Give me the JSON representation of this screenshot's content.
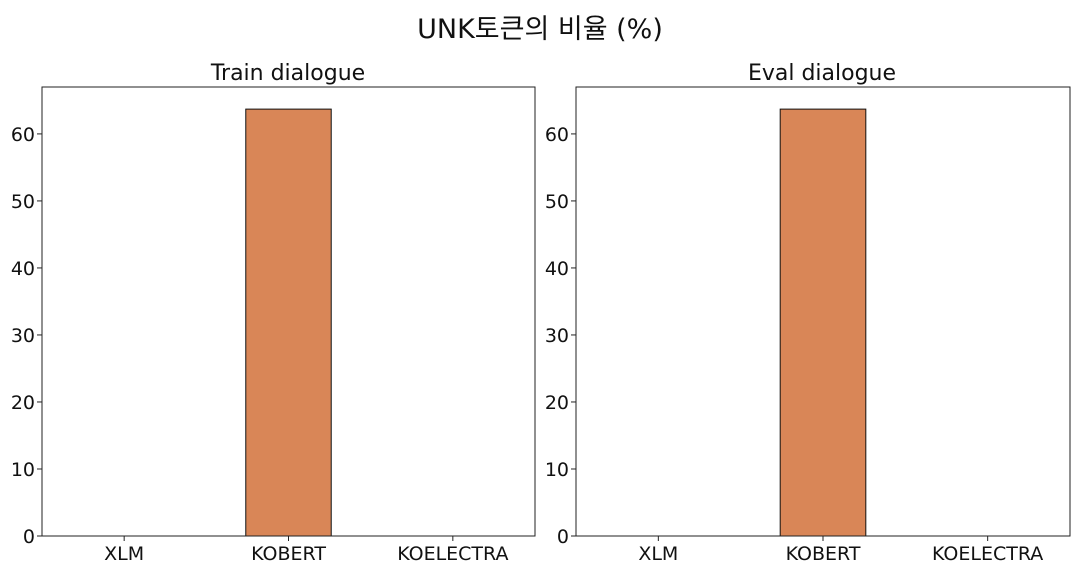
{
  "figure_title": "UNK토큰의 비율 (%)",
  "chart_data": [
    {
      "type": "bar",
      "title": "Train dialogue",
      "categories": [
        "XLM",
        "KOBERT",
        "KOELECTRA"
      ],
      "values": [
        0,
        63.7,
        0
      ],
      "ylim": [
        0,
        67
      ],
      "yticks": [
        0,
        10,
        20,
        30,
        40,
        50,
        60
      ],
      "xlabel": "",
      "ylabel": "",
      "bar_color": "#d98657",
      "grid": false
    },
    {
      "type": "bar",
      "title": "Eval dialogue",
      "categories": [
        "XLM",
        "KOBERT",
        "KOELECTRA"
      ],
      "values": [
        0,
        63.7,
        0
      ],
      "ylim": [
        0,
        67
      ],
      "yticks": [
        0,
        10,
        20,
        30,
        40,
        50,
        60
      ],
      "xlabel": "",
      "ylabel": "",
      "bar_color": "#d98657",
      "grid": false
    }
  ]
}
